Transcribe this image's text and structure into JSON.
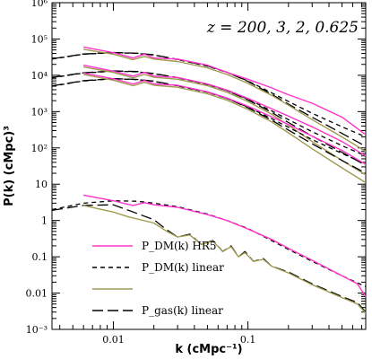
{
  "chart_data": {
    "type": "line",
    "xscale": "log",
    "yscale": "log",
    "xlim": [
      0.0035,
      0.75
    ],
    "ylim": [
      0.001,
      1000000
    ],
    "xlabel": "k (cMpc⁻¹)",
    "ylabel": "P(k) (cMpc)³",
    "annotation": "z = 200, 3, 2, 0.625",
    "x_ticks": [
      {
        "value": 0.01,
        "label": "0.01"
      },
      {
        "value": 0.1,
        "label": "0.1"
      }
    ],
    "y_ticks": [
      {
        "value": 0.001,
        "label": "10⁻³"
      },
      {
        "value": 0.01,
        "label": "0.01"
      },
      {
        "value": 0.1,
        "label": "0.1"
      },
      {
        "value": 1,
        "label": "1"
      },
      {
        "value": 10,
        "label": "10"
      },
      {
        "value": 100,
        "label": "10²"
      },
      {
        "value": 1000,
        "label": "10³"
      },
      {
        "value": 10000,
        "label": "10⁴"
      },
      {
        "value": 100000,
        "label": "10⁵"
      },
      {
        "value": 1000000,
        "label": "10⁶"
      }
    ],
    "legend_position": "bottom-left",
    "legend": [
      {
        "label": "P_DM(k) HR5",
        "color": "#ff33cc",
        "dash": "solid"
      },
      {
        "label": "P_DM(k) linear",
        "color": "#000000",
        "dash": "short"
      },
      {
        "label": "",
        "color": "#a09a50",
        "dash": "solid"
      },
      {
        "label": "P_gas(k) linear",
        "color": "#000000",
        "dash": "long"
      }
    ],
    "series": [
      {
        "group": "z0.625",
        "style": "dm_linear",
        "points": [
          [
            0.0035,
            28000
          ],
          [
            0.006,
            38000
          ],
          [
            0.01,
            42000
          ],
          [
            0.015,
            40000
          ],
          [
            0.02,
            36000
          ],
          [
            0.03,
            27000
          ],
          [
            0.05,
            18000
          ],
          [
            0.07,
            12000
          ],
          [
            0.1,
            7000
          ],
          [
            0.15,
            3300
          ],
          [
            0.2,
            1900
          ],
          [
            0.3,
            900
          ],
          [
            0.5,
            380
          ],
          [
            0.75,
            200
          ]
        ]
      },
      {
        "group": "z0.625",
        "style": "gas_linear",
        "points": [
          [
            0.0035,
            28500
          ],
          [
            0.006,
            38500
          ],
          [
            0.01,
            42500
          ],
          [
            0.015,
            40500
          ],
          [
            0.02,
            36500
          ],
          [
            0.03,
            27500
          ],
          [
            0.05,
            18200
          ],
          [
            0.07,
            12100
          ],
          [
            0.1,
            6800
          ],
          [
            0.15,
            3000
          ],
          [
            0.2,
            1600
          ],
          [
            0.3,
            700
          ],
          [
            0.5,
            250
          ],
          [
            0.75,
            110
          ]
        ]
      },
      {
        "group": "z0.625",
        "style": "dm_hr5",
        "points": [
          [
            0.006,
            60000
          ],
          [
            0.01,
            42000
          ],
          [
            0.014,
            30000
          ],
          [
            0.017,
            38000
          ],
          [
            0.02,
            30000
          ],
          [
            0.03,
            28000
          ],
          [
            0.05,
            19000
          ],
          [
            0.07,
            12000
          ],
          [
            0.1,
            7800
          ],
          [
            0.15,
            4500
          ],
          [
            0.2,
            2900
          ],
          [
            0.3,
            1700
          ],
          [
            0.5,
            700
          ],
          [
            0.75,
            230
          ]
        ]
      },
      {
        "group": "z0.625",
        "style": "gas_hr5",
        "points": [
          [
            0.006,
            52000
          ],
          [
            0.01,
            38000
          ],
          [
            0.014,
            27000
          ],
          [
            0.017,
            33000
          ],
          [
            0.02,
            28000
          ],
          [
            0.03,
            24000
          ],
          [
            0.05,
            16000
          ],
          [
            0.07,
            10500
          ],
          [
            0.1,
            6000
          ],
          [
            0.15,
            2800
          ],
          [
            0.2,
            1500
          ],
          [
            0.3,
            600
          ],
          [
            0.5,
            200
          ],
          [
            0.75,
            80
          ]
        ]
      },
      {
        "group": "z2",
        "style": "dm_linear",
        "points": [
          [
            0.0035,
            8500
          ],
          [
            0.006,
            11500
          ],
          [
            0.01,
            13000
          ],
          [
            0.015,
            12500
          ],
          [
            0.02,
            11000
          ],
          [
            0.03,
            8500
          ],
          [
            0.05,
            5600
          ],
          [
            0.07,
            3800
          ],
          [
            0.1,
            2200
          ],
          [
            0.15,
            1050
          ],
          [
            0.2,
            600
          ],
          [
            0.3,
            280
          ],
          [
            0.5,
            115
          ],
          [
            0.75,
            60
          ]
        ]
      },
      {
        "group": "z2",
        "style": "gas_linear",
        "points": [
          [
            0.0035,
            8700
          ],
          [
            0.006,
            11700
          ],
          [
            0.01,
            13200
          ],
          [
            0.015,
            12700
          ],
          [
            0.02,
            11200
          ],
          [
            0.03,
            8600
          ],
          [
            0.05,
            5700
          ],
          [
            0.07,
            3800
          ],
          [
            0.1,
            2100
          ],
          [
            0.15,
            950
          ],
          [
            0.2,
            500
          ],
          [
            0.3,
            210
          ],
          [
            0.5,
            75
          ],
          [
            0.75,
            33
          ]
        ]
      },
      {
        "group": "z2",
        "style": "dm_hr5",
        "points": [
          [
            0.006,
            19000
          ],
          [
            0.01,
            13000
          ],
          [
            0.014,
            9500
          ],
          [
            0.017,
            12000
          ],
          [
            0.02,
            9500
          ],
          [
            0.03,
            8700
          ],
          [
            0.05,
            5800
          ],
          [
            0.07,
            3900
          ],
          [
            0.1,
            2300
          ],
          [
            0.15,
            1200
          ],
          [
            0.2,
            750
          ],
          [
            0.3,
            380
          ],
          [
            0.5,
            150
          ],
          [
            0.75,
            60
          ]
        ]
      },
      {
        "group": "z2",
        "style": "gas_hr5",
        "points": [
          [
            0.006,
            17000
          ],
          [
            0.01,
            12000
          ],
          [
            0.014,
            8500
          ],
          [
            0.017,
            10500
          ],
          [
            0.02,
            8800
          ],
          [
            0.03,
            7800
          ],
          [
            0.05,
            5200
          ],
          [
            0.07,
            3400
          ],
          [
            0.1,
            1900
          ],
          [
            0.15,
            850
          ],
          [
            0.2,
            420
          ],
          [
            0.3,
            150
          ],
          [
            0.5,
            45
          ],
          [
            0.75,
            18
          ]
        ]
      },
      {
        "group": "z3",
        "style": "dm_linear",
        "points": [
          [
            0.0035,
            5000
          ],
          [
            0.006,
            7000
          ],
          [
            0.01,
            8000
          ],
          [
            0.015,
            7600
          ],
          [
            0.02,
            6800
          ],
          [
            0.03,
            5100
          ],
          [
            0.05,
            3400
          ],
          [
            0.07,
            2300
          ],
          [
            0.1,
            1330
          ],
          [
            0.15,
            640
          ],
          [
            0.2,
            370
          ],
          [
            0.3,
            170
          ],
          [
            0.5,
            70
          ],
          [
            0.75,
            36
          ]
        ]
      },
      {
        "group": "z3",
        "style": "gas_linear",
        "points": [
          [
            0.0035,
            5100
          ],
          [
            0.006,
            7100
          ],
          [
            0.01,
            8100
          ],
          [
            0.015,
            7700
          ],
          [
            0.02,
            6900
          ],
          [
            0.03,
            5200
          ],
          [
            0.05,
            3450
          ],
          [
            0.07,
            2300
          ],
          [
            0.1,
            1280
          ],
          [
            0.15,
            580
          ],
          [
            0.2,
            310
          ],
          [
            0.3,
            130
          ],
          [
            0.5,
            45
          ],
          [
            0.75,
            20
          ]
        ]
      },
      {
        "group": "z3",
        "style": "dm_hr5",
        "points": [
          [
            0.006,
            11500
          ],
          [
            0.01,
            8000
          ],
          [
            0.014,
            5800
          ],
          [
            0.017,
            7200
          ],
          [
            0.02,
            5800
          ],
          [
            0.03,
            5300
          ],
          [
            0.05,
            3500
          ],
          [
            0.07,
            2350
          ],
          [
            0.1,
            1400
          ],
          [
            0.15,
            720
          ],
          [
            0.2,
            440
          ],
          [
            0.3,
            210
          ],
          [
            0.5,
            85
          ],
          [
            0.75,
            35
          ]
        ]
      },
      {
        "group": "z3",
        "style": "gas_hr5",
        "points": [
          [
            0.006,
            10500
          ],
          [
            0.01,
            7300
          ],
          [
            0.014,
            5200
          ],
          [
            0.017,
            6400
          ],
          [
            0.02,
            5300
          ],
          [
            0.03,
            4700
          ],
          [
            0.05,
            3100
          ],
          [
            0.07,
            2050
          ],
          [
            0.1,
            1150
          ],
          [
            0.15,
            520
          ],
          [
            0.2,
            260
          ],
          [
            0.3,
            95
          ],
          [
            0.5,
            28
          ],
          [
            0.75,
            11
          ]
        ]
      },
      {
        "group": "z200",
        "style": "dm_linear",
        "points": [
          [
            0.0035,
            2.0
          ],
          [
            0.006,
            3.0
          ],
          [
            0.01,
            3.5
          ],
          [
            0.015,
            3.4
          ],
          [
            0.02,
            3.0
          ],
          [
            0.03,
            2.4
          ],
          [
            0.05,
            1.5
          ],
          [
            0.07,
            1.0
          ],
          [
            0.1,
            0.6
          ],
          [
            0.15,
            0.28
          ],
          [
            0.2,
            0.16
          ],
          [
            0.3,
            0.075
          ],
          [
            0.5,
            0.03
          ],
          [
            0.75,
            0.015
          ]
        ]
      },
      {
        "group": "z200",
        "style": "gas_linear",
        "points": [
          [
            0.0035,
            1.9
          ],
          [
            0.006,
            2.6
          ],
          [
            0.01,
            2.7
          ],
          [
            0.013,
            1.9
          ],
          [
            0.02,
            1.05
          ],
          [
            0.025,
            0.55
          ],
          [
            0.03,
            0.35
          ],
          [
            0.037,
            0.42
          ],
          [
            0.045,
            0.22
          ],
          [
            0.055,
            0.28
          ],
          [
            0.065,
            0.14
          ],
          [
            0.075,
            0.2
          ],
          [
            0.085,
            0.1
          ],
          [
            0.095,
            0.14
          ],
          [
            0.11,
            0.075
          ],
          [
            0.13,
            0.09
          ],
          [
            0.15,
            0.055
          ],
          [
            0.2,
            0.038
          ],
          [
            0.3,
            0.018
          ],
          [
            0.5,
            0.008
          ],
          [
            0.65,
            0.0055
          ],
          [
            0.75,
            0.003
          ]
        ]
      },
      {
        "group": "z200",
        "style": "dm_hr5",
        "points": [
          [
            0.006,
            5.0
          ],
          [
            0.01,
            3.5
          ],
          [
            0.014,
            2.6
          ],
          [
            0.017,
            3.1
          ],
          [
            0.02,
            2.7
          ],
          [
            0.03,
            2.3
          ],
          [
            0.05,
            1.45
          ],
          [
            0.07,
            1.0
          ],
          [
            0.1,
            0.58
          ],
          [
            0.15,
            0.3
          ],
          [
            0.2,
            0.17
          ],
          [
            0.3,
            0.08
          ],
          [
            0.5,
            0.03
          ],
          [
            0.65,
            0.018
          ],
          [
            0.75,
            0.008
          ]
        ]
      },
      {
        "group": "z200",
        "style": "gas_hr5",
        "points": [
          [
            0.006,
            2.6
          ],
          [
            0.01,
            1.7
          ],
          [
            0.013,
            1.25
          ],
          [
            0.02,
            0.85
          ],
          [
            0.025,
            0.5
          ],
          [
            0.03,
            0.35
          ],
          [
            0.037,
            0.4
          ],
          [
            0.045,
            0.22
          ],
          [
            0.055,
            0.27
          ],
          [
            0.065,
            0.14
          ],
          [
            0.075,
            0.19
          ],
          [
            0.085,
            0.1
          ],
          [
            0.095,
            0.13
          ],
          [
            0.11,
            0.075
          ],
          [
            0.13,
            0.085
          ],
          [
            0.15,
            0.055
          ],
          [
            0.2,
            0.036
          ],
          [
            0.3,
            0.017
          ],
          [
            0.5,
            0.0075
          ],
          [
            0.65,
            0.005
          ],
          [
            0.75,
            0.0028
          ]
        ]
      }
    ]
  },
  "styles": {
    "dm_hr5": {
      "color": "#ff33cc",
      "dash": "",
      "width": 1.4
    },
    "gas_hr5": {
      "color": "#a09a50",
      "dash": "",
      "width": 1.4
    },
    "dm_linear": {
      "color": "#000000",
      "dash": "5,4",
      "width": 1.3
    },
    "gas_linear": {
      "color": "#000000",
      "dash": "12,5",
      "width": 1.3
    }
  }
}
